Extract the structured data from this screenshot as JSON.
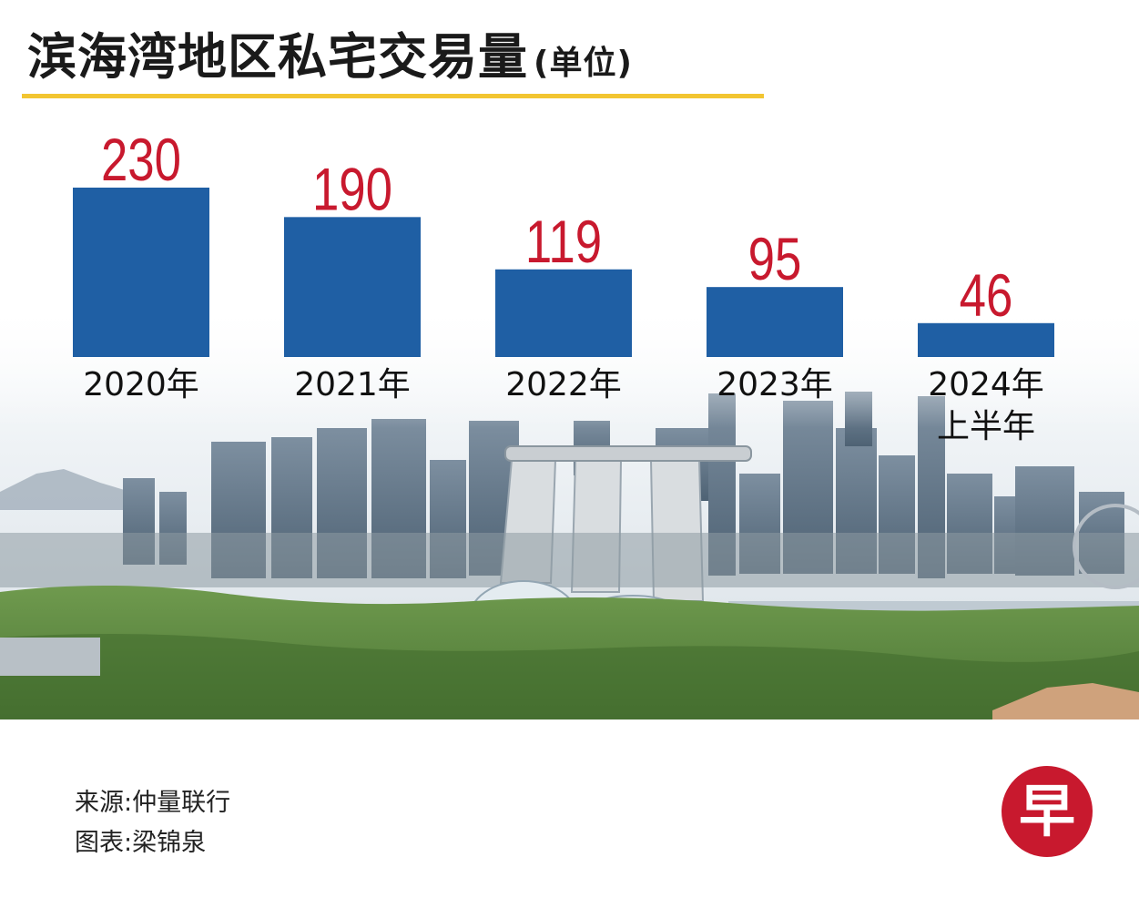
{
  "title": "滨海湾地区私宅交易量",
  "title_unit": "(单位)",
  "chart_data": {
    "type": "bar",
    "title": "滨海湾地区私宅交易量",
    "ylabel": "单位",
    "categories": [
      "2020年",
      "2021年",
      "2022年",
      "2023年",
      "2024年上半年"
    ],
    "category_lines": [
      [
        "2020年"
      ],
      [
        "2021年"
      ],
      [
        "2022年"
      ],
      [
        "2023年"
      ],
      [
        "2024年",
        "上半年"
      ]
    ],
    "values": [
      230,
      190,
      119,
      95,
      46
    ],
    "ylim": [
      0,
      230
    ],
    "grid": false,
    "bar_color": "#1f5fa4",
    "value_label_color": "#c8192e"
  },
  "footer": {
    "source": "来源:仲量联行",
    "credit": "图表:梁锦泉"
  },
  "logo": {
    "glyph": "早",
    "color": "#c8192e"
  },
  "background": {
    "description_icon": "cityscape-illustration",
    "sky_color": "#e9eef2",
    "park_color": "#5d8a3f"
  }
}
